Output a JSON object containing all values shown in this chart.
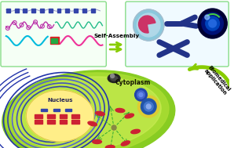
{
  "self_assembly_text": "Self-Assembly",
  "biomedical_text": "Biomedical\napplication",
  "cytoplasm_text": "Cytoplasm",
  "nucleus_text": "Nucleus",
  "box_edge_color": "#88dd88",
  "box_face_left": "#f5fff5",
  "box_face_right": "#f0faff",
  "cell_green_outer": "#88cc22",
  "cell_green_inner": "#aadd33",
  "cell_light": "#ccee55",
  "nucleus_yellow": "#ffee88",
  "nucleus_edge": "#ddcc44",
  "arrow_green": "#88cc00",
  "polymer_purple": "#bb33aa",
  "polymer_green": "#22bb88",
  "polymer_cyan": "#00bbdd",
  "polymer_pink": "#ee3399",
  "blue_dark": "#223388",
  "blue_mid": "#3355aa",
  "connector_red": "#dd2222",
  "connector_green": "#22aa44",
  "dna_red": "#cc2233",
  "dna_blue": "#3344aa",
  "er_blue": "#2233aa",
  "release_green": "#33aa33",
  "bg": "#ffffff",
  "dot_blue": "#3344aa",
  "dot_line": "#9999cc"
}
